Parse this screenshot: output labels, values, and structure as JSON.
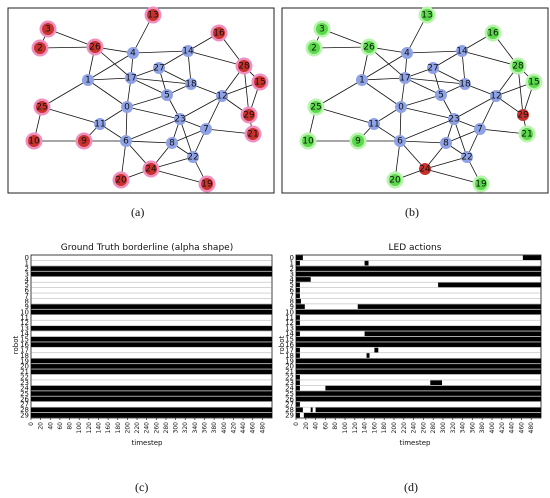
{
  "panels": {
    "a": {
      "label": "(a)"
    },
    "b": {
      "label": "(b)"
    },
    "c": {
      "label": "(c)",
      "title": "Ground Truth borderline (alpha shape)",
      "xlabel": "timestep",
      "ylabel": "robot"
    },
    "d": {
      "label": "(d)",
      "title": "LED actions",
      "xlabel": "timestep",
      "ylabel": "robot"
    }
  },
  "colors": {
    "node_blue": "#8fa2e6",
    "node_red": "#c8322d",
    "node_green": "#59d84a",
    "halo_pink": "#f08fbf",
    "halo_green": "#b9f3ad",
    "bar": "#000000"
  },
  "chart_data": [
    {
      "type": "network",
      "panel": "a",
      "nodes": [
        {
          "id": "0",
          "status": "inner"
        },
        {
          "id": "1",
          "status": "inner"
        },
        {
          "id": "2",
          "status": "border"
        },
        {
          "id": "3",
          "status": "border"
        },
        {
          "id": "4",
          "status": "inner"
        },
        {
          "id": "5",
          "status": "inner"
        },
        {
          "id": "6",
          "status": "inner"
        },
        {
          "id": "7",
          "status": "inner"
        },
        {
          "id": "8",
          "status": "inner"
        },
        {
          "id": "9",
          "status": "border"
        },
        {
          "id": "10",
          "status": "border"
        },
        {
          "id": "11",
          "status": "inner"
        },
        {
          "id": "12",
          "status": "inner"
        },
        {
          "id": "13",
          "status": "border"
        },
        {
          "id": "14",
          "status": "inner"
        },
        {
          "id": "15",
          "status": "border"
        },
        {
          "id": "16",
          "status": "border"
        },
        {
          "id": "17",
          "status": "inner"
        },
        {
          "id": "18",
          "status": "inner"
        },
        {
          "id": "19",
          "status": "border"
        },
        {
          "id": "20",
          "status": "border"
        },
        {
          "id": "21",
          "status": "border"
        },
        {
          "id": "22",
          "status": "inner"
        },
        {
          "id": "23",
          "status": "inner"
        },
        {
          "id": "24",
          "status": "border"
        },
        {
          "id": "25",
          "status": "border"
        },
        {
          "id": "26",
          "status": "border"
        },
        {
          "id": "27",
          "status": "inner"
        },
        {
          "id": "28",
          "status": "border"
        },
        {
          "id": "29",
          "status": "border"
        }
      ],
      "edges": [
        [
          "3",
          "26"
        ],
        [
          "2",
          "3"
        ],
        [
          "2",
          "26"
        ],
        [
          "26",
          "1"
        ],
        [
          "26",
          "4"
        ],
        [
          "26",
          "17"
        ],
        [
          "4",
          "17"
        ],
        [
          "4",
          "13"
        ],
        [
          "4",
          "14"
        ],
        [
          "4",
          "1"
        ],
        [
          "14",
          "16"
        ],
        [
          "14",
          "28"
        ],
        [
          "14",
          "18"
        ],
        [
          "14",
          "27"
        ],
        [
          "16",
          "28"
        ],
        [
          "28",
          "15"
        ],
        [
          "28",
          "12"
        ],
        [
          "28",
          "29"
        ],
        [
          "15",
          "29"
        ],
        [
          "15",
          "12"
        ],
        [
          "29",
          "21"
        ],
        [
          "29",
          "12"
        ],
        [
          "1",
          "17"
        ],
        [
          "1",
          "0"
        ],
        [
          "1",
          "25"
        ],
        [
          "17",
          "0"
        ],
        [
          "17",
          "5"
        ],
        [
          "17",
          "27"
        ],
        [
          "17",
          "18"
        ],
        [
          "27",
          "18"
        ],
        [
          "27",
          "5"
        ],
        [
          "18",
          "5"
        ],
        [
          "18",
          "12"
        ],
        [
          "12",
          "23"
        ],
        [
          "12",
          "7"
        ],
        [
          "0",
          "11"
        ],
        [
          "0",
          "5"
        ],
        [
          "0",
          "23"
        ],
        [
          "0",
          "6"
        ],
        [
          "5",
          "23"
        ],
        [
          "23",
          "7"
        ],
        [
          "23",
          "6"
        ],
        [
          "23",
          "8"
        ],
        [
          "23",
          "22"
        ],
        [
          "7",
          "21"
        ],
        [
          "7",
          "22"
        ],
        [
          "7",
          "8"
        ],
        [
          "25",
          "11"
        ],
        [
          "25",
          "10"
        ],
        [
          "11",
          "6"
        ],
        [
          "11",
          "9"
        ],
        [
          "10",
          "9"
        ],
        [
          "9",
          "6"
        ],
        [
          "6",
          "8"
        ],
        [
          "6",
          "20"
        ],
        [
          "6",
          "24"
        ],
        [
          "8",
          "24"
        ],
        [
          "8",
          "22"
        ],
        [
          "22",
          "24"
        ],
        [
          "22",
          "19"
        ],
        [
          "24",
          "20"
        ],
        [
          "24",
          "19"
        ]
      ]
    },
    {
      "type": "network",
      "panel": "b",
      "nodes": [
        {
          "id": "0",
          "status": "inner"
        },
        {
          "id": "1",
          "status": "inner"
        },
        {
          "id": "2",
          "status": "detected"
        },
        {
          "id": "3",
          "status": "detected"
        },
        {
          "id": "4",
          "status": "inner"
        },
        {
          "id": "5",
          "status": "inner"
        },
        {
          "id": "6",
          "status": "inner"
        },
        {
          "id": "7",
          "status": "inner"
        },
        {
          "id": "8",
          "status": "inner"
        },
        {
          "id": "9",
          "status": "detected"
        },
        {
          "id": "10",
          "status": "detected"
        },
        {
          "id": "11",
          "status": "inner"
        },
        {
          "id": "12",
          "status": "inner"
        },
        {
          "id": "13",
          "status": "detected"
        },
        {
          "id": "14",
          "status": "inner"
        },
        {
          "id": "15",
          "status": "detected"
        },
        {
          "id": "16",
          "status": "detected"
        },
        {
          "id": "17",
          "status": "inner"
        },
        {
          "id": "18",
          "status": "inner"
        },
        {
          "id": "19",
          "status": "detected"
        },
        {
          "id": "20",
          "status": "detected"
        },
        {
          "id": "21",
          "status": "detected"
        },
        {
          "id": "22",
          "status": "inner"
        },
        {
          "id": "23",
          "status": "inner"
        },
        {
          "id": "24",
          "status": "missed"
        },
        {
          "id": "25",
          "status": "detected"
        },
        {
          "id": "26",
          "status": "detected"
        },
        {
          "id": "27",
          "status": "inner"
        },
        {
          "id": "28",
          "status": "detected"
        },
        {
          "id": "29",
          "status": "missed"
        }
      ],
      "edges": "same as panel a"
    },
    {
      "type": "raster",
      "panel": "c",
      "title": "Ground Truth borderline (alpha shape)",
      "xlabel": "timestep",
      "ylabel": "robot",
      "xlim": [
        0,
        500
      ],
      "xticks": [
        0,
        20,
        40,
        60,
        80,
        100,
        120,
        140,
        160,
        180,
        200,
        220,
        240,
        260,
        280,
        300,
        320,
        340,
        360,
        380,
        400,
        420,
        440,
        460,
        480
      ],
      "robots": [
        0,
        1,
        2,
        3,
        4,
        5,
        6,
        7,
        8,
        9,
        10,
        11,
        12,
        13,
        14,
        15,
        16,
        17,
        18,
        19,
        20,
        21,
        22,
        23,
        24,
        25,
        26,
        27,
        28,
        29
      ],
      "on_intervals": [
        [],
        [],
        [
          [
            0,
            500
          ]
        ],
        [
          [
            0,
            500
          ]
        ],
        [],
        [],
        [],
        [],
        [],
        [
          [
            0,
            500
          ]
        ],
        [
          [
            0,
            500
          ]
        ],
        [],
        [],
        [
          [
            0,
            500
          ]
        ],
        [],
        [
          [
            0,
            500
          ]
        ],
        [
          [
            0,
            500
          ]
        ],
        [],
        [],
        [
          [
            0,
            500
          ]
        ],
        [
          [
            0,
            500
          ]
        ],
        [
          [
            0,
            500
          ]
        ],
        [],
        [],
        [
          [
            0,
            500
          ]
        ],
        [
          [
            0,
            500
          ]
        ],
        [
          [
            0,
            500
          ]
        ],
        [],
        [
          [
            0,
            500
          ]
        ],
        [
          [
            0,
            500
          ]
        ]
      ]
    },
    {
      "type": "raster",
      "panel": "d",
      "title": "LED actions",
      "xlabel": "timestep",
      "ylabel": "robot",
      "xlim": [
        0,
        500
      ],
      "xticks": [
        0,
        20,
        40,
        60,
        80,
        100,
        120,
        140,
        160,
        180,
        200,
        220,
        240,
        260,
        280,
        300,
        320,
        340,
        360,
        380,
        400,
        420,
        440,
        460,
        480
      ],
      "robots": [
        0,
        1,
        2,
        3,
        4,
        5,
        6,
        7,
        8,
        9,
        10,
        11,
        12,
        13,
        14,
        15,
        16,
        17,
        18,
        19,
        20,
        21,
        22,
        23,
        24,
        25,
        26,
        27,
        28,
        29
      ],
      "on_intervals": [
        [
          [
            0,
            14
          ],
          [
            463,
            500
          ]
        ],
        [
          [
            0,
            8
          ],
          [
            140,
            148
          ]
        ],
        [
          [
            0,
            500
          ]
        ],
        [
          [
            0,
            500
          ]
        ],
        [
          [
            0,
            30
          ]
        ],
        [
          [
            0,
            8
          ],
          [
            290,
            500
          ]
        ],
        [
          [
            0,
            8
          ]
        ],
        [
          [
            0,
            8
          ]
        ],
        [
          [
            0,
            10
          ]
        ],
        [
          [
            0,
            18
          ],
          [
            126,
            500
          ]
        ],
        [
          [
            0,
            500
          ]
        ],
        [
          [
            0,
            8
          ]
        ],
        [
          [
            0,
            8
          ]
        ],
        [
          [
            0,
            500
          ]
        ],
        [
          [
            0,
            8
          ],
          [
            140,
            500
          ]
        ],
        [
          [
            0,
            500
          ]
        ],
        [
          [
            0,
            500
          ]
        ],
        [
          [
            0,
            8
          ],
          [
            160,
            168
          ]
        ],
        [
          [
            0,
            8
          ],
          [
            144,
            150
          ]
        ],
        [
          [
            0,
            500
          ]
        ],
        [
          [
            0,
            500
          ]
        ],
        [
          [
            0,
            500
          ]
        ],
        [
          [
            0,
            8
          ]
        ],
        [
          [
            0,
            8
          ],
          [
            274,
            298
          ]
        ],
        [
          [
            0,
            8
          ],
          [
            60,
            500
          ]
        ],
        [
          [
            0,
            500
          ]
        ],
        [
          [
            0,
            500
          ]
        ],
        [
          [
            0,
            8
          ]
        ],
        [
          [
            0,
            14
          ],
          [
            30,
            34
          ],
          [
            40,
            500
          ]
        ],
        [
          [
            0,
            8
          ],
          [
            16,
            500
          ]
        ]
      ]
    }
  ]
}
